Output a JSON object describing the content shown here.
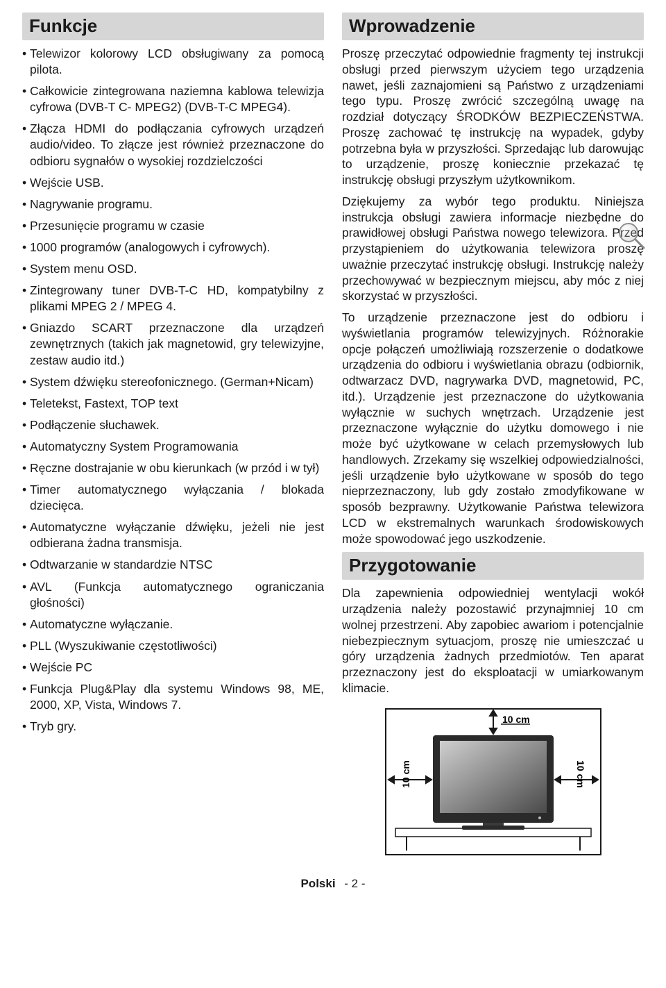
{
  "colors": {
    "header_bg": "#d6d6d6",
    "text": "#1a1a1a",
    "page_bg": "#ffffff",
    "tv_border": "#2a2a2a",
    "tv_screen_dark": "#555555",
    "tv_screen_light": "#c8c8c8"
  },
  "typography": {
    "body_fontsize": 17.5,
    "header_fontsize": 26
  },
  "left": {
    "header": "Funkcje",
    "items": [
      "Telewizor kolorowy LCD obsługiwany za pomocą pilota.",
      "Całkowicie zintegrowana naziemna kablowa telewizja cyfrowa (DVB-T C- MPEG2) (DVB-T-C MPEG4).",
      "Złącza HDMI do podłączania cyfrowych urządzeń audio/video. To złącze jest również przeznaczone do odbioru sygnałów o wysokiej rozdzielczości",
      "Wejście USB.",
      "Nagrywanie programu.",
      "Przesunięcie programu w czasie",
      "1000 programów (analogowych i cyfrowych).",
      "System menu OSD.",
      "Zintegrowany tuner DVB-T-C HD, kompatybilny z plikami MPEG 2 / MPEG 4.",
      "Gniazdo SCART przeznaczone dla urządzeń zewnętrznych (takich jak magnetowid, gry telewizyjne, zestaw audio itd.)",
      "System dźwięku stereofonicznego. (German+Nicam)",
      "Teletekst, Fastext, TOP text",
      "Podłączenie słuchawek.",
      "Automatyczny System Programowania",
      "Ręczne dostrajanie w obu kierunkach (w przód i w tył)",
      "Timer automatycznego wyłączania / blokada dziecięca.",
      "Automatyczne wyłączanie dźwięku, jeżeli nie jest odbierana żadna transmisja.",
      "Odtwarzanie w standardzie NTSC",
      "AVL (Funkcja automatycznego ograniczania głośności)",
      "Automatyczne wyłączanie.",
      "PLL (Wyszukiwanie częstotliwości)",
      "Wejście PC",
      "Funkcja Plug&Play dla systemu Windows 98, ME, 2000, XP, Vista, Windows 7.",
      "Tryb gry."
    ]
  },
  "right": {
    "intro": {
      "header": "Wprowadzenie",
      "p1": "Proszę przeczytać odpowiednie fragmenty tej instrukcji obsługi przed pierwszym użyciem tego urządzenia nawet, jeśli zaznajomieni są Państwo z urządzeniami tego typu. Proszę zwrócić szczególną uwagę na rozdział dotyczący ŚRODKÓW BEZPIECZEŃSTWA. Proszę zachować tę instrukcję na wypadek, gdyby potrzebna była w przyszłości. Sprzedając lub darowując to urządzenie, proszę koniecznie przekazać tę instrukcję obsługi przyszłym użytkownikom.",
      "p2": "Dziękujemy za wybór tego produktu. Niniejsza instrukcja obsługi zawiera informacje niezbędne do prawidłowej obsługi Państwa nowego telewizora. Przed przystąpieniem do użytkowania telewizora proszę uważnie przeczytać instrukcję obsługi. Instrukcję należy przechowywać w bezpiecznym miejscu, aby móc z niej skorzystać w przyszłości.",
      "p3": "To urządzenie przeznaczone jest do odbioru i wyświetlania programów telewizyjnych. Różnorakie opcje połączeń umożliwiają rozszerzenie o dodatkowe urządzenia do odbioru i wyświetlania obrazu (odbiornik, odtwarzacz DVD, nagrywarka DVD, magnetowid, PC, itd.). Urządzenie jest przeznaczone do użytkowania wyłącznie w suchych wnętrzach. Urządzenie jest przeznaczone wyłącznie do użytku domowego i nie może być użytkowane w celach przemysłowych lub handlowych. Zrzekamy się wszelkiej odpowiedzialności, jeśli urządzenie było użytkowane w sposób do tego nieprzeznaczony, lub gdy zostało zmodyfikowane w sposób bezprawny. Użytkowanie Państwa telewizora LCD w ekstremalnych warunkach środowiskowych może spowodować jego uszkodzenie."
    },
    "prep": {
      "header": "Przygotowanie",
      "p1": "Dla zapewnienia odpowiedniej wentylacji wokół urządzenia należy pozostawić przynajmniej 10 cm wolnej przestrzeni. Aby zapobiec awariom i potencjalnie niebezpiecznym sytuacjom, proszę nie umieszczać u góry urządzenia żadnych przedmiotów. Ten aparat przeznaczony jest do eksploatacji w umiarkowanym klimacie."
    },
    "diagram": {
      "label_top": "10 cm",
      "label_left": "10 cm",
      "label_right": "10 cm"
    }
  },
  "footer": {
    "lang": "Polski",
    "page": "- 2 -"
  }
}
